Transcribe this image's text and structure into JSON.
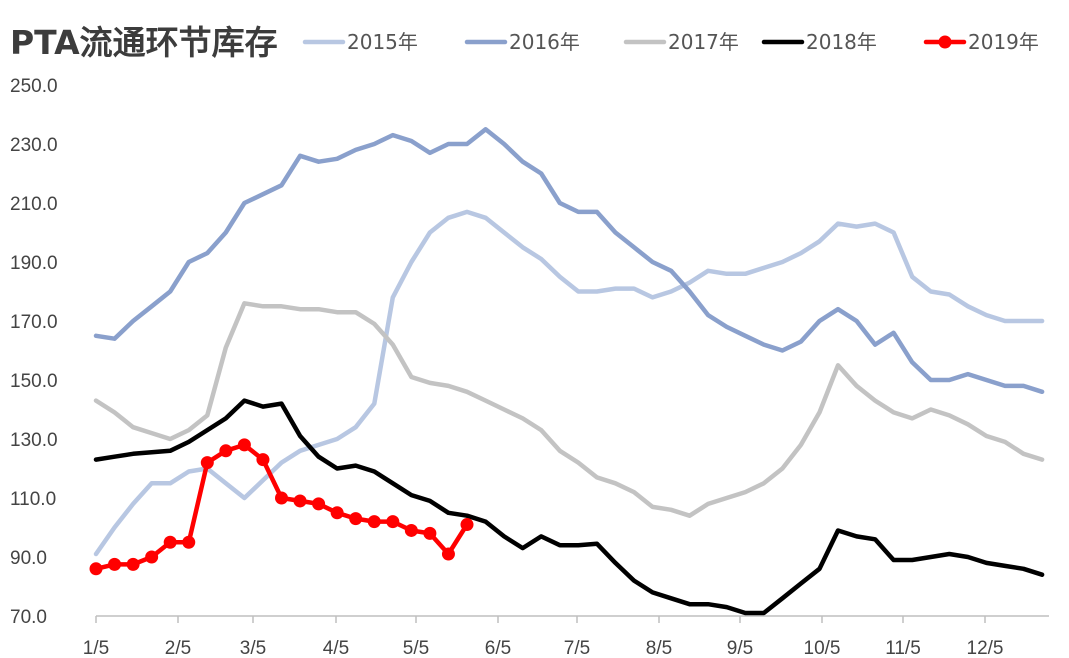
{
  "chart_data": {
    "type": "line",
    "title": "PTA流通环节库存",
    "ylim": [
      70,
      250
    ],
    "y_ticks": [
      "250.0",
      "230.0",
      "210.0",
      "190.0",
      "170.0",
      "150.0",
      "130.0",
      "110.0",
      "90.0",
      "70.0"
    ],
    "x_ticks": [
      "1/5",
      "2/5",
      "3/5",
      "4/5",
      "5/5",
      "6/5",
      "7/5",
      "8/5",
      "9/5",
      "10/5",
      "11/5",
      "12/5"
    ],
    "legend_position": "top",
    "grid": false,
    "series": [
      {
        "name": "2015年",
        "color": "#b8c7e2",
        "marker": false,
        "values": [
          91,
          100,
          108,
          115,
          115,
          119,
          120,
          115,
          110,
          116,
          122,
          126,
          128,
          130,
          134,
          142,
          178,
          190,
          200,
          205,
          207,
          205,
          200,
          195,
          191,
          185,
          180,
          180,
          181,
          181,
          178,
          180,
          183,
          187,
          186,
          186,
          188,
          190,
          193,
          197,
          203,
          202,
          203,
          200,
          185,
          180,
          179,
          175,
          172,
          170,
          170,
          170
        ]
      },
      {
        "name": "2016年",
        "color": "#8aa0cc",
        "marker": false,
        "values": [
          165,
          164,
          170,
          175,
          180,
          190,
          193,
          200,
          210,
          213,
          216,
          226,
          224,
          225,
          228,
          230,
          233,
          231,
          227,
          230,
          230,
          235,
          230,
          224,
          220,
          210,
          207,
          207,
          200,
          195,
          190,
          187,
          180,
          172,
          168,
          165,
          162,
          160,
          163,
          170,
          174,
          170,
          162,
          166,
          156,
          150,
          150,
          152,
          150,
          148,
          148,
          146
        ]
      },
      {
        "name": "2017年",
        "color": "#c3c3c3",
        "marker": false,
        "values": [
          143,
          139,
          134,
          132,
          130,
          133,
          138,
          161,
          176,
          175,
          175,
          174,
          174,
          173,
          173,
          169,
          162,
          151,
          149,
          148,
          146,
          143,
          140,
          137,
          133,
          126,
          122,
          117,
          115,
          112,
          107,
          106,
          104,
          108,
          110,
          112,
          115,
          120,
          128,
          139,
          155,
          148,
          143,
          139,
          137,
          140,
          138,
          135,
          131,
          129,
          125,
          123
        ]
      },
      {
        "name": "2018年",
        "color": "#000000",
        "marker": false,
        "values": [
          123,
          124,
          125,
          125.5,
          126,
          129,
          133,
          137,
          143,
          141,
          142,
          131,
          124,
          120,
          121,
          119,
          115,
          111,
          109,
          105,
          104,
          102,
          97,
          93,
          97,
          94,
          94,
          94.5,
          88,
          82,
          78,
          76,
          74,
          74,
          73,
          71,
          71,
          76,
          81,
          86,
          99,
          97,
          96,
          89,
          89,
          90,
          91,
          90,
          88,
          87,
          86,
          84
        ]
      },
      {
        "name": "2019年",
        "color": "#ff0000",
        "marker": true,
        "values": [
          86,
          87.5,
          87.5,
          90,
          95,
          95,
          122,
          126,
          128,
          123,
          110,
          109,
          108,
          105,
          103,
          102,
          102,
          99,
          98,
          91,
          101
        ]
      }
    ]
  }
}
